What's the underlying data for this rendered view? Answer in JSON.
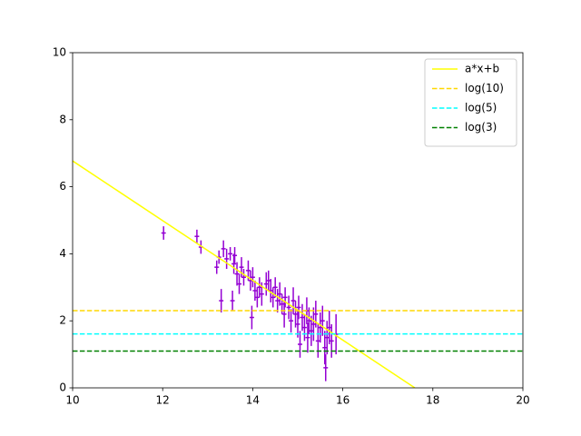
{
  "chart_data": {
    "type": "errorbar",
    "xlim": [
      10,
      20
    ],
    "ylim": [
      0,
      10
    ],
    "xticks": [
      10,
      12,
      14,
      16,
      18,
      20
    ],
    "yticks": [
      0,
      2,
      4,
      6,
      8,
      10
    ],
    "grid": false,
    "legend": "upper right",
    "series": [
      {
        "name": "a*x+b",
        "color": "#ffff00",
        "dash": false,
        "x": [
          10,
          17.6
        ],
        "values": [
          6.77,
          0
        ]
      },
      {
        "name": "log(10)",
        "color": "#ffd700",
        "dash": true,
        "x": [
          10,
          20
        ],
        "values": [
          2.303,
          2.303
        ]
      },
      {
        "name": "log(5)",
        "color": "#00ffff",
        "dash": true,
        "x": [
          10,
          20
        ],
        "values": [
          1.609,
          1.609
        ]
      },
      {
        "name": "log(3)",
        "color": "#008000",
        "dash": true,
        "x": [
          10,
          20
        ],
        "values": [
          1.099,
          1.099
        ]
      }
    ],
    "points": {
      "color": "#9400d3",
      "x": [
        12.02,
        12.76,
        12.85,
        13.2,
        13.25,
        13.3,
        13.35,
        13.42,
        13.5,
        13.55,
        13.58,
        13.6,
        13.65,
        13.7,
        13.75,
        13.8,
        13.9,
        13.95,
        13.98,
        14.0,
        14.05,
        14.1,
        14.15,
        14.2,
        14.3,
        14.35,
        14.4,
        14.45,
        14.5,
        14.55,
        14.6,
        14.65,
        14.7,
        14.72,
        14.8,
        14.85,
        14.9,
        14.95,
        15.0,
        15.02,
        15.05,
        15.1,
        15.15,
        15.2,
        15.22,
        15.25,
        15.3,
        15.35,
        15.4,
        15.45,
        15.5,
        15.55,
        15.6,
        15.62,
        15.65,
        15.7,
        15.75,
        15.85
      ],
      "values": [
        4.62,
        4.52,
        4.2,
        3.6,
        3.9,
        2.6,
        4.15,
        3.85,
        4.0,
        2.6,
        3.7,
        3.95,
        3.4,
        3.1,
        3.6,
        3.3,
        3.5,
        3.2,
        2.1,
        3.3,
        2.9,
        2.7,
        3.0,
        2.8,
        3.1,
        3.2,
        2.9,
        2.7,
        3.0,
        2.6,
        2.8,
        2.5,
        2.2,
        2.7,
        2.4,
        2.0,
        2.6,
        2.2,
        1.9,
        2.4,
        1.3,
        2.1,
        1.8,
        2.3,
        1.5,
        2.0,
        1.7,
        1.9,
        2.2,
        1.4,
        1.8,
        2.0,
        1.2,
        0.6,
        1.5,
        1.8,
        1.4,
        1.6
      ],
      "yerr": [
        0.2,
        0.2,
        0.2,
        0.2,
        0.2,
        0.35,
        0.25,
        0.3,
        0.2,
        0.3,
        0.3,
        0.25,
        0.35,
        0.3,
        0.3,
        0.25,
        0.3,
        0.3,
        0.35,
        0.3,
        0.3,
        0.3,
        0.3,
        0.35,
        0.35,
        0.3,
        0.35,
        0.3,
        0.3,
        0.35,
        0.35,
        0.3,
        0.4,
        0.3,
        0.35,
        0.35,
        0.4,
        0.4,
        0.4,
        0.35,
        0.4,
        0.4,
        0.4,
        0.4,
        0.45,
        0.4,
        0.45,
        0.5,
        0.4,
        0.5,
        0.45,
        0.45,
        0.5,
        0.4,
        0.5,
        0.5,
        0.5,
        0.6
      ],
      "xerr": [
        0.05,
        0.05,
        0.05,
        0.05,
        0.05,
        0.05,
        0.05,
        0.05,
        0.05,
        0.05,
        0.05,
        0.05,
        0.05,
        0.05,
        0.05,
        0.05,
        0.05,
        0.05,
        0.05,
        0.05,
        0.05,
        0.05,
        0.05,
        0.05,
        0.05,
        0.05,
        0.05,
        0.05,
        0.05,
        0.05,
        0.05,
        0.05,
        0.05,
        0.05,
        0.05,
        0.05,
        0.05,
        0.05,
        0.05,
        0.05,
        0.05,
        0.05,
        0.05,
        0.05,
        0.05,
        0.05,
        0.05,
        0.05,
        0.05,
        0.05,
        0.05,
        0.05,
        0.05,
        0.05,
        0.05,
        0.05,
        0.05,
        0.05
      ]
    }
  }
}
